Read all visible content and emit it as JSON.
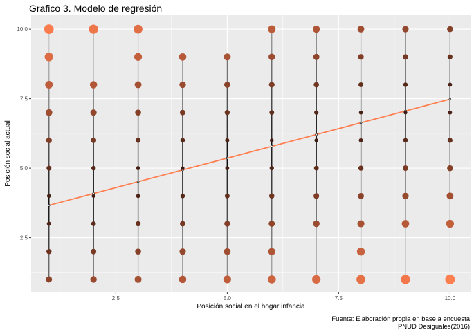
{
  "chart_data": {
    "type": "scatter",
    "title": "Grafico 3. Modelo de regresión",
    "xlabel": "Posición social en el hogar infancia",
    "ylabel": "Posición social actual",
    "xlim": [
      0.6,
      10.46
    ],
    "ylim": [
      0.55,
      10.5
    ],
    "xticks": [
      2.5,
      5.0,
      7.5,
      10.0
    ],
    "xtick_labels": [
      "2.5",
      "5.0",
      "7.5",
      "10.0"
    ],
    "yticks": [
      2.5,
      5.0,
      7.5,
      10.0
    ],
    "ytick_labels": [
      "2.5",
      "5.0",
      "7.5",
      "10.0"
    ],
    "grid": true,
    "regression": {
      "intercept": 3.24,
      "slope": 0.424,
      "color": "#ff7f50"
    },
    "point_color_low": "#3a1a10",
    "point_color_high": "#ff7f50",
    "columns": [
      {
        "x": 1,
        "y": [
          1,
          2,
          3,
          4,
          5,
          6,
          7,
          8,
          9,
          10
        ]
      },
      {
        "x": 2,
        "y": [
          1,
          2,
          3,
          4,
          5,
          6,
          7,
          8,
          10
        ]
      },
      {
        "x": 3,
        "y": [
          1,
          2,
          3,
          4,
          5,
          6,
          7,
          8,
          9,
          10
        ]
      },
      {
        "x": 4,
        "y": [
          1,
          2,
          3,
          4,
          5,
          6,
          7,
          8,
          9
        ]
      },
      {
        "x": 5,
        "y": [
          1,
          2,
          3,
          4,
          5,
          6,
          7,
          8,
          9
        ]
      },
      {
        "x": 6,
        "y": [
          1,
          2,
          3,
          4,
          5,
          6,
          7,
          8,
          9,
          10
        ]
      },
      {
        "x": 7,
        "y": [
          1,
          3,
          4,
          5,
          6,
          7,
          8,
          9,
          10
        ]
      },
      {
        "x": 8,
        "y": [
          1,
          2,
          3,
          4,
          5,
          6,
          7,
          8,
          9,
          10
        ]
      },
      {
        "x": 9,
        "y": [
          1,
          3,
          4,
          5,
          6,
          7,
          8,
          9,
          10
        ]
      },
      {
        "x": 10,
        "y": [
          1,
          3,
          4,
          5,
          6,
          7,
          8,
          9,
          10
        ]
      }
    ]
  },
  "caption": {
    "line1": "Fuente: Elaboración propia en base a encuesta",
    "line2": "PNUD Desiguales(2016)"
  }
}
